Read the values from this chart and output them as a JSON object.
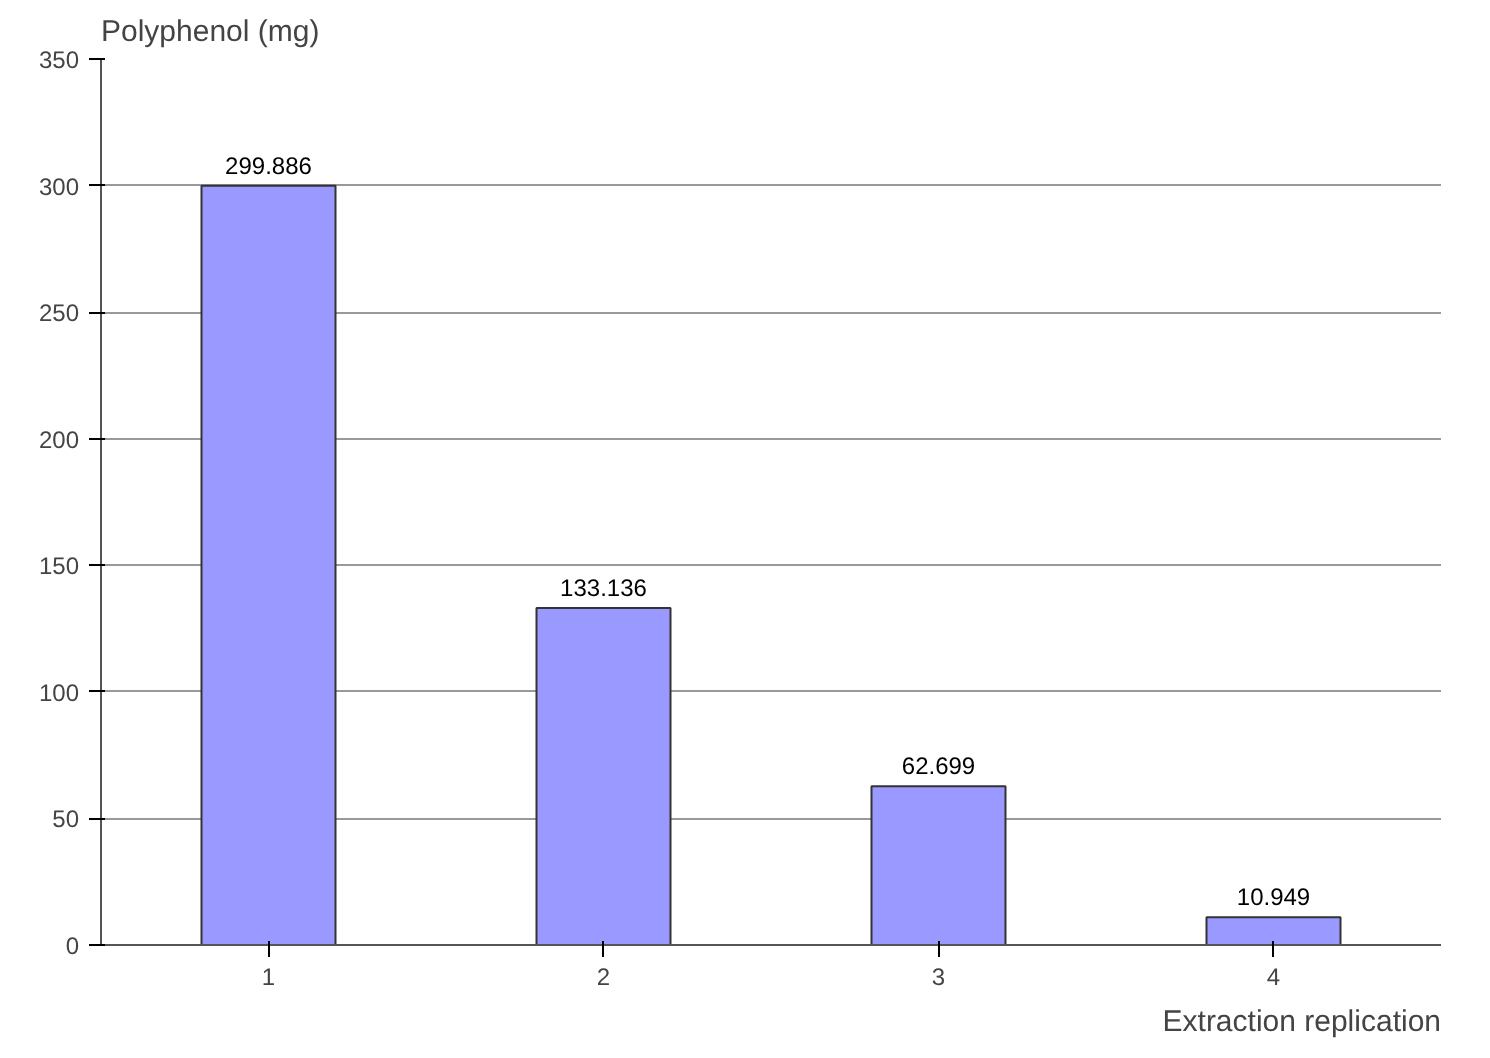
{
  "chart_data": {
    "type": "bar",
    "ylabel": "Polyphenol (mg)",
    "xlabel": "Extraction replication",
    "categories": [
      "1",
      "2",
      "3",
      "4"
    ],
    "values": [
      299.886,
      133.136,
      62.699,
      10.949
    ],
    "color": "#9999ff",
    "ylim": [
      0,
      350
    ],
    "yticks": [
      0,
      50,
      100,
      150,
      200,
      250,
      300,
      350
    ],
    "grid": "y",
    "data_labels": true
  }
}
